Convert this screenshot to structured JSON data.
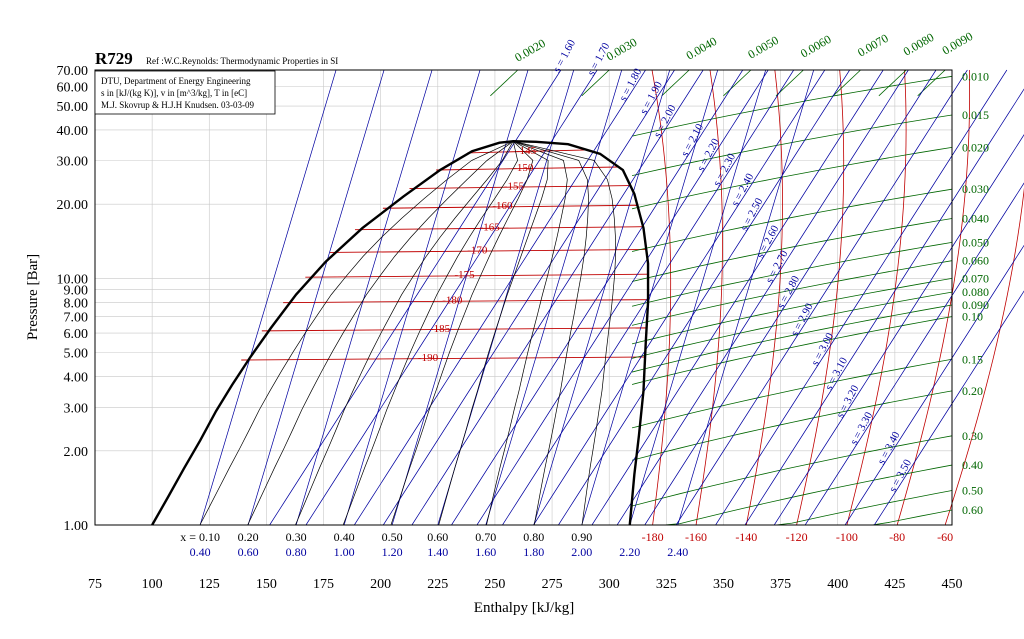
{
  "chart_data": {
    "type": "line",
    "title": "R729",
    "subtitle": "Ref :W.C.Reynolds: Thermodynamic Properties in SI",
    "info_lines": [
      "DTU, Department of Energy Engineering",
      "s in [kJ/(kg K)], v in [m^3/kg], T in [eC]",
      "M.J. Skovrup & H.J.H Knudsen. 03-03-09"
    ],
    "xlabel": "Enthalpy [kJ/kg]",
    "ylabel": "Pressure [Bar]",
    "xlim": [
      75,
      450
    ],
    "ylim": [
      1.0,
      70.0
    ],
    "y_scale": "log",
    "x_ticks": [
      75,
      100,
      125,
      150,
      175,
      200,
      225,
      250,
      275,
      300,
      325,
      350,
      375,
      400,
      425,
      450
    ],
    "y_ticks": [
      "1.00",
      "2.00",
      "3.00",
      "4.00",
      "5.00",
      "6.00",
      "7.00",
      "8.00",
      "9.00",
      "10.00",
      "20.00",
      "30.00",
      "40.00",
      "50.00",
      "60.00",
      "70.00"
    ],
    "grid": true,
    "colors": {
      "saturation": "#000000",
      "isotherm": "#c00000",
      "isentrope": "#0000a0",
      "isochore": "#006600",
      "quality": "#000000",
      "grid": "#c8c8c8"
    },
    "saturation_dome": {
      "liquid": [
        [
          100,
          1.0
        ],
        [
          107,
          1.3
        ],
        [
          114,
          1.7
        ],
        [
          121,
          2.2
        ],
        [
          128,
          2.9
        ],
        [
          135,
          3.7
        ],
        [
          143,
          4.8
        ],
        [
          152,
          6.3
        ],
        [
          163,
          8.6
        ],
        [
          176,
          11.7
        ],
        [
          192,
          16.0
        ],
        [
          210,
          21.5
        ],
        [
          226,
          27.5
        ],
        [
          240,
          32.8
        ],
        [
          252,
          35.5
        ],
        [
          258,
          36.0
        ]
      ],
      "vapor": [
        [
          258,
          36.0
        ],
        [
          268,
          35.8
        ],
        [
          282,
          35.0
        ],
        [
          296,
          32.0
        ],
        [
          306,
          27.5
        ],
        [
          311,
          22.0
        ],
        [
          315,
          16.0
        ],
        [
          317,
          11.5
        ],
        [
          317,
          8.0
        ],
        [
          316,
          5.5
        ],
        [
          315,
          3.5
        ],
        [
          313,
          2.3
        ],
        [
          311,
          1.6
        ],
        [
          309,
          1.0
        ]
      ]
    },
    "isotherms": {
      "unit": "eC",
      "inside_dome_labels": [
        "-145",
        "-150",
        "-155",
        "-160",
        "-165",
        "-170",
        "-175",
        "-180",
        "-185",
        "-190"
      ],
      "inside_dome_pressures": [
        33.2,
        28.3,
        23.8,
        19.8,
        16.2,
        13.1,
        10.4,
        8.2,
        6.3,
        4.8
      ],
      "bottom_labels": [
        "-180",
        "-160",
        "-140",
        "-120",
        "-100",
        "-80",
        "-60"
      ],
      "bottom_h": [
        319,
        338,
        360,
        382,
        404,
        426,
        447
      ]
    },
    "quality_lines": {
      "labels": [
        "x = 0.10",
        "0.20",
        "0.30",
        "0.40",
        "0.50",
        "0.60",
        "0.70",
        "0.80",
        "0.90"
      ],
      "h_at_1bar": [
        121,
        142,
        163,
        184,
        205,
        225,
        246,
        267,
        288
      ]
    },
    "isentropes": {
      "unit": "kJ/(kg K)",
      "bottom_labels": [
        "0.40",
        "0.60",
        "0.80",
        "1.00",
        "1.20",
        "1.40",
        "1.60",
        "1.80",
        "2.00",
        "2.20",
        "2.40"
      ],
      "bottom_h": [
        121,
        142,
        163,
        184,
        205,
        225,
        246,
        267,
        288,
        309,
        330
      ],
      "vapor_labels": [
        "s = 1.60",
        "s = 1.70",
        "s = 1.80",
        "s = 1.90",
        "s = 2.00",
        "s = 2.10",
        "s = 2.20",
        "s = 2.30",
        "s = 2.40",
        "s = 2.50",
        "s = 2.60",
        "s = 2.70",
        "s = 2.80",
        "s = 2.90",
        "s = 3.00",
        "s = 3.10",
        "s = 3.20",
        "s = 3.30",
        "s = 3.40",
        "s = 3.50"
      ],
      "vapor_label_points": [
        [
          278,
          68
        ],
        [
          293,
          66
        ],
        [
          307,
          52
        ],
        [
          316,
          46
        ],
        [
          322,
          37
        ],
        [
          334,
          31
        ],
        [
          341,
          27
        ],
        [
          348,
          23.5
        ],
        [
          356,
          19.5
        ],
        [
          360,
          15.5
        ],
        [
          367,
          12.0
        ],
        [
          371,
          9.5
        ],
        [
          376,
          7.5
        ],
        [
          382,
          5.8
        ],
        [
          391,
          4.4
        ],
        [
          397,
          3.5
        ],
        [
          402,
          2.7
        ],
        [
          408,
          2.1
        ],
        [
          420,
          1.75
        ],
        [
          425,
          1.35
        ]
      ]
    },
    "isochores": {
      "unit": "m^3/kg",
      "top_labels": [
        "0.0020",
        "0.0030",
        "0.0040",
        "0.0050",
        "0.0060",
        "0.0070",
        "0.0080",
        "0.0090"
      ],
      "top_h": [
        260,
        300,
        335,
        362,
        385,
        410,
        430,
        447
      ],
      "right_labels": [
        "0.010",
        "0.015",
        "0.020",
        "0.030",
        "0.040",
        "0.050",
        "0.060",
        "0.070",
        "0.080",
        "0.090",
        "0.10",
        "0.15",
        "0.20",
        "0.30",
        "0.40",
        "0.50",
        "0.60"
      ],
      "right_pressures": [
        66,
        46,
        34,
        23,
        17.5,
        14.0,
        11.8,
        10.0,
        8.8,
        7.8,
        7.0,
        4.7,
        3.5,
        2.3,
        1.75,
        1.38,
        1.15
      ]
    }
  }
}
